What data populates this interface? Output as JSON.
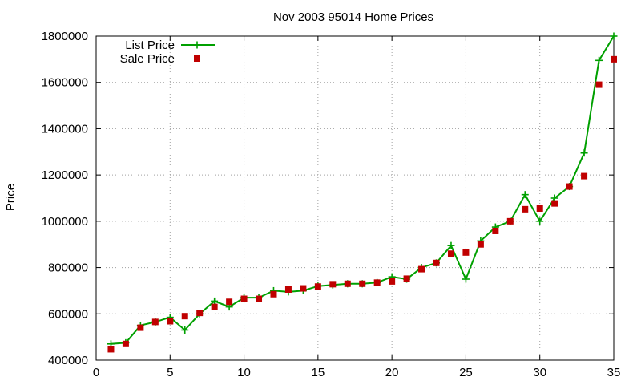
{
  "chart_data": {
    "type": "line",
    "title": "Nov 2003 95014 Home Prices",
    "xlabel": "",
    "ylabel": "Price",
    "xlim": [
      0,
      35
    ],
    "ylim": [
      400000,
      1800000
    ],
    "x_ticks": [
      0,
      5,
      10,
      15,
      20,
      25,
      30,
      35
    ],
    "y_ticks": [
      400000,
      600000,
      800000,
      1000000,
      1200000,
      1400000,
      1600000,
      1800000
    ],
    "grid": true,
    "legend_position": "top-left",
    "series": [
      {
        "name": "List Price",
        "style": "line+cross",
        "color": "#00a000",
        "x": [
          1,
          2,
          3,
          4,
          5,
          6,
          7,
          8,
          9,
          10,
          11,
          12,
          13,
          14,
          15,
          16,
          17,
          18,
          19,
          20,
          21,
          22,
          23,
          24,
          25,
          26,
          27,
          28,
          29,
          30,
          31,
          32,
          33,
          34,
          35
        ],
        "values": [
          470000,
          475000,
          550000,
          565000,
          585000,
          530000,
          600000,
          655000,
          630000,
          670000,
          670000,
          700000,
          695000,
          700000,
          720000,
          725000,
          730000,
          730000,
          735000,
          760000,
          750000,
          800000,
          820000,
          895000,
          750000,
          915000,
          975000,
          1000000,
          1115000,
          1000000,
          1100000,
          1150000,
          1295000,
          1695000,
          1800000
        ]
      },
      {
        "name": "Sale Price",
        "style": "square",
        "color": "#c00000",
        "x": [
          1,
          2,
          3,
          4,
          5,
          6,
          7,
          8,
          9,
          10,
          11,
          12,
          13,
          14,
          15,
          16,
          17,
          18,
          19,
          20,
          21,
          22,
          23,
          24,
          25,
          26,
          27,
          28,
          29,
          30,
          31,
          32,
          33,
          34,
          35
        ],
        "values": [
          447000,
          470000,
          540000,
          565000,
          568000,
          590000,
          604000,
          630000,
          652000,
          665000,
          665000,
          685000,
          705000,
          710000,
          718000,
          728000,
          730000,
          730000,
          735000,
          740000,
          752000,
          793000,
          820000,
          860000,
          865000,
          900000,
          958000,
          1000000,
          1052000,
          1055000,
          1077000,
          1150000,
          1195000,
          1590000,
          1700000
        ]
      }
    ]
  }
}
